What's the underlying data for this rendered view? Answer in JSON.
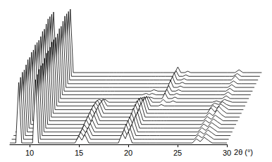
{
  "chart_data": {
    "type": "line",
    "x_label": "2θ (°)",
    "x": [
      8,
      8.6,
      8.9,
      9.2,
      10.3,
      10.6,
      10.9,
      14.6,
      15.0,
      15.3,
      15.6,
      16.0,
      19.0,
      19.4,
      19.7,
      20.0,
      20.4,
      21.2,
      21.5,
      21.8,
      22.2,
      22.5,
      22.8,
      26.5,
      26.9,
      27.3,
      27.7,
      28.1,
      28.5,
      30
    ],
    "xlim": [
      8,
      30
    ],
    "xticks": [
      10,
      15,
      20,
      25,
      30
    ],
    "ylim": [
      0,
      50
    ],
    "tick_labels": "x",
    "grid": false,
    "color": "#000000",
    "series": [
      {
        "values": [
          1,
          1,
          44,
          1,
          1,
          46,
          1,
          1,
          6,
          3,
          7,
          1,
          1,
          8,
          4,
          9,
          1,
          1,
          1,
          1,
          1,
          1,
          1,
          1,
          4,
          2,
          5,
          3,
          1,
          1
        ]
      },
      {
        "values": [
          1,
          1,
          45,
          1,
          1,
          47,
          1,
          1,
          6,
          3,
          7,
          1,
          1,
          8,
          4,
          9,
          1,
          1,
          1,
          1,
          1,
          1,
          1,
          1,
          4,
          2,
          5,
          3,
          1,
          1
        ]
      },
      {
        "values": [
          1,
          1,
          46,
          1,
          1,
          48,
          1,
          1,
          6,
          3,
          7,
          1,
          1,
          9,
          4,
          9,
          1,
          1,
          1,
          1,
          1,
          1,
          1,
          1,
          4,
          2,
          5,
          3,
          1,
          1
        ]
      },
      {
        "values": [
          1,
          1,
          45,
          1,
          1,
          48,
          1,
          1,
          6,
          3,
          7,
          1,
          1,
          9,
          4,
          10,
          1,
          1,
          1,
          1,
          1,
          1,
          1,
          1,
          4,
          2,
          5,
          3,
          1,
          1
        ]
      },
      {
        "values": [
          1,
          1,
          46,
          1,
          1,
          47,
          1,
          1,
          7,
          3,
          7,
          1,
          1,
          9,
          4,
          10,
          1,
          1,
          1,
          1,
          1,
          1,
          1,
          1,
          4,
          2,
          5,
          3,
          1,
          1
        ]
      },
      {
        "values": [
          1,
          1,
          47,
          1,
          1,
          48,
          1,
          1,
          7,
          3,
          8,
          1,
          1,
          9,
          4,
          10,
          1,
          1,
          1,
          1,
          1,
          1,
          1,
          1,
          4,
          2,
          5,
          3,
          1,
          1
        ]
      },
      {
        "values": [
          1,
          1,
          46,
          1,
          1,
          49,
          1,
          1,
          7,
          3,
          8,
          1,
          1,
          10,
          4,
          10,
          1,
          1,
          1,
          1,
          1,
          1,
          1,
          1,
          4,
          2,
          5,
          3,
          1,
          1
        ]
      },
      {
        "values": [
          1,
          1,
          47,
          1,
          1,
          48,
          1,
          1,
          7,
          3,
          8,
          1,
          1,
          10,
          5,
          11,
          1,
          1,
          1,
          1,
          1,
          1,
          1,
          1,
          4,
          2,
          6,
          3,
          1,
          1
        ]
      },
      {
        "values": [
          1,
          1,
          46,
          1,
          1,
          48,
          1,
          1,
          7,
          3,
          8,
          1,
          1,
          10,
          5,
          11,
          1,
          1,
          1,
          1,
          1,
          1,
          1,
          1,
          5,
          2,
          6,
          3,
          1,
          1
        ]
      },
      {
        "values": [
          1,
          1,
          47,
          1,
          1,
          49,
          1,
          1,
          6,
          3,
          7,
          1,
          1,
          9,
          4,
          10,
          1,
          1,
          1,
          1,
          1,
          1,
          1,
          1,
          4,
          2,
          5,
          3,
          1,
          1
        ]
      },
      {
        "values": [
          1,
          1,
          46,
          1,
          1,
          48,
          1,
          1,
          5,
          2,
          6,
          1,
          1,
          7,
          3,
          8,
          1,
          1,
          2,
          1,
          1,
          1,
          1,
          1,
          3,
          2,
          4,
          2,
          1,
          1
        ]
      },
      {
        "values": [
          1,
          1,
          45,
          1,
          1,
          47,
          1,
          1,
          3,
          2,
          3,
          1,
          1,
          4,
          2,
          5,
          1,
          1,
          3,
          1,
          1,
          2,
          1,
          1,
          2,
          1,
          3,
          2,
          1,
          1
        ]
      },
      {
        "values": [
          1,
          1,
          45,
          1,
          1,
          47,
          1,
          1,
          1,
          1,
          1,
          1,
          1,
          2,
          1,
          2,
          1,
          1,
          5,
          1,
          1,
          2,
          1,
          1,
          1,
          1,
          3,
          1,
          1,
          1
        ]
      },
      {
        "values": [
          1,
          1,
          46,
          1,
          1,
          48,
          1,
          1,
          1,
          1,
          1,
          1,
          1,
          2,
          1,
          2,
          1,
          1,
          5,
          1,
          1,
          2,
          1,
          1,
          1,
          1,
          3,
          1,
          1,
          1
        ]
      },
      {
        "values": [
          1,
          1,
          45,
          1,
          1,
          47,
          1,
          1,
          1,
          1,
          1,
          1,
          1,
          1,
          1,
          2,
          1,
          1,
          5,
          1,
          1,
          2,
          1,
          1,
          1,
          1,
          3,
          1,
          1,
          1
        ]
      },
      {
        "values": [
          1,
          1,
          46,
          1,
          1,
          48,
          1,
          1,
          1,
          1,
          1,
          1,
          1,
          1,
          1,
          1,
          1,
          1,
          6,
          1,
          1,
          2,
          1,
          1,
          1,
          1,
          3,
          1,
          1,
          1
        ]
      },
      {
        "values": [
          1,
          1,
          47,
          1,
          1,
          49,
          1,
          1,
          1,
          1,
          1,
          1,
          1,
          1,
          1,
          1,
          1,
          1,
          6,
          1,
          1,
          2,
          1,
          1,
          1,
          1,
          3,
          1,
          1,
          1
        ]
      },
      {
        "values": [
          1,
          1,
          46,
          1,
          1,
          48,
          1,
          1,
          1,
          1,
          1,
          1,
          1,
          1,
          1,
          1,
          1,
          1,
          6,
          1,
          1,
          2,
          1,
          1,
          1,
          1,
          4,
          1,
          1,
          1
        ]
      },
      {
        "values": [
          1,
          1,
          45,
          1,
          1,
          47,
          1,
          1,
          1,
          1,
          1,
          1,
          1,
          1,
          1,
          1,
          1,
          1,
          5,
          1,
          1,
          2,
          1,
          1,
          1,
          1,
          3,
          1,
          1,
          1
        ]
      },
      {
        "values": [
          1,
          1,
          44,
          1,
          1,
          46,
          1,
          1,
          1,
          1,
          1,
          1,
          1,
          1,
          1,
          1,
          1,
          1,
          5,
          1,
          1,
          2,
          1,
          1,
          1,
          1,
          3,
          1,
          1,
          1
        ]
      }
    ]
  }
}
